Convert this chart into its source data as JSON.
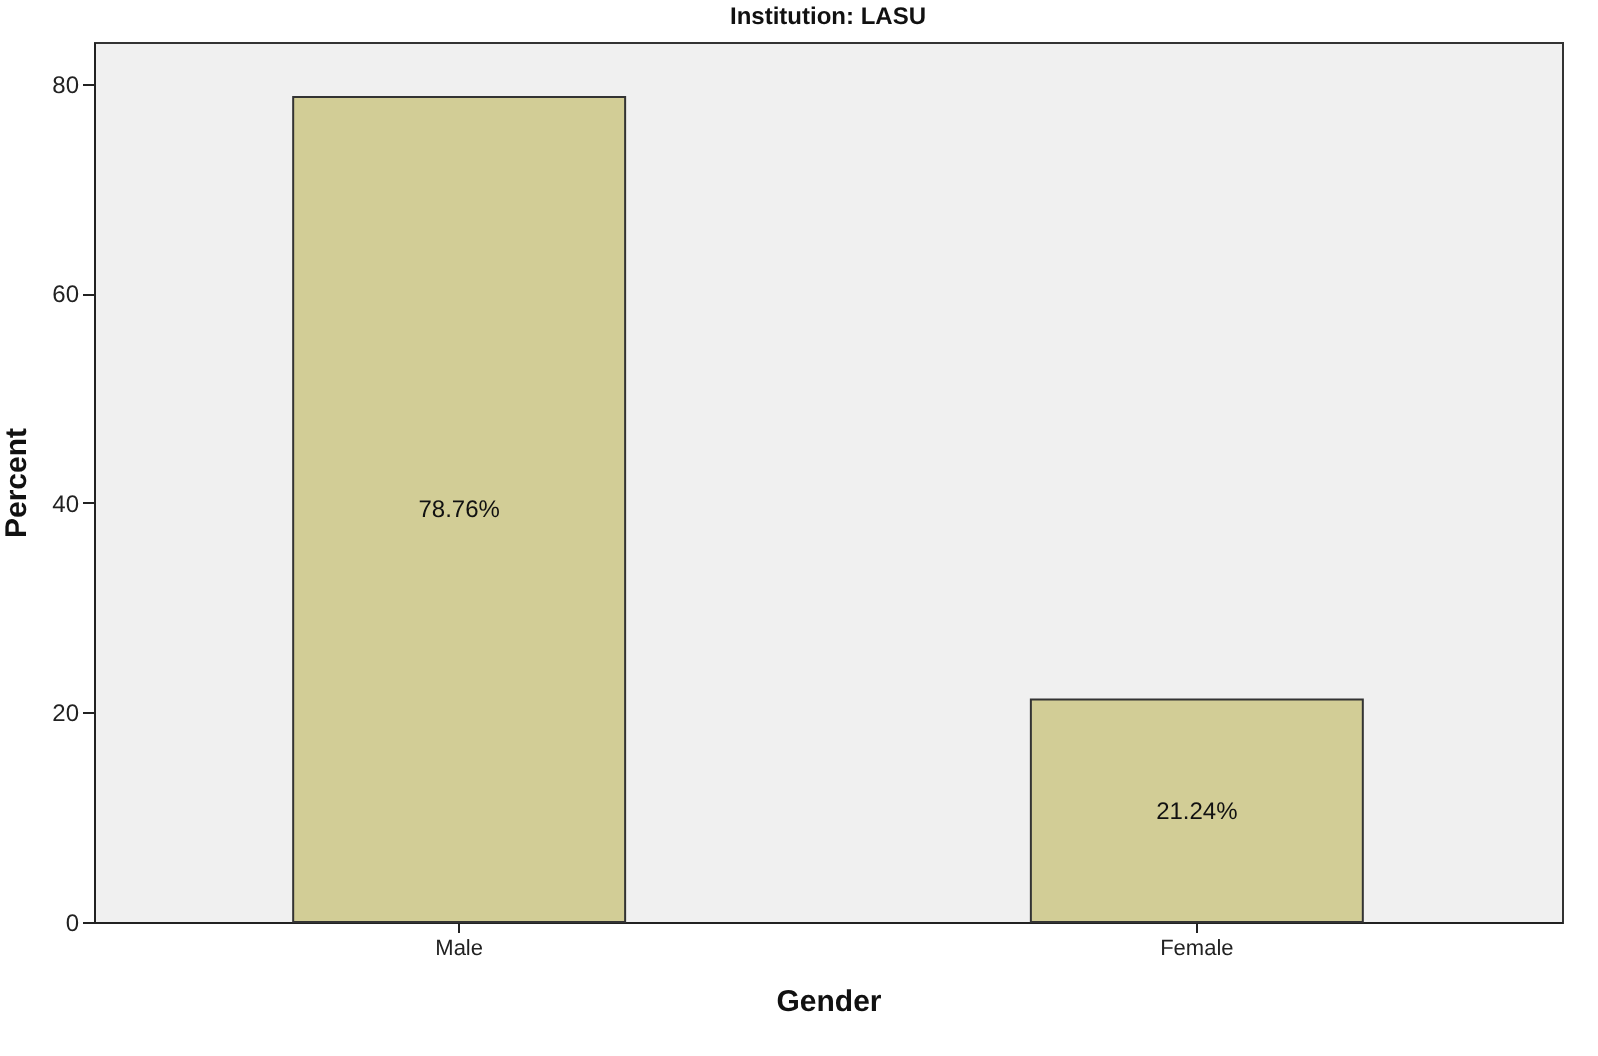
{
  "chart_data": {
    "type": "bar",
    "title": "Institution: LASU",
    "xlabel": "Gender",
    "ylabel": "Percent",
    "categories": [
      "Male",
      "Female"
    ],
    "values": [
      78.76,
      21.24
    ],
    "value_labels": [
      "78.76%",
      "21.24%"
    ],
    "color": "#d2cd96",
    "ylim": [
      0,
      84
    ],
    "yticks": [
      0,
      20,
      40,
      60,
      80
    ],
    "grid": false
  }
}
